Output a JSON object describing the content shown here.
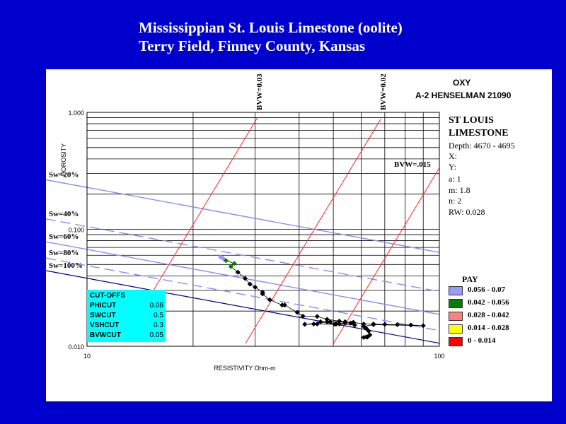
{
  "title_line1": "Mississippian St. Louis Limestone (oolite)",
  "title_line2": "Terry Field, Finney County, Kansas",
  "well": {
    "operator": "OXY",
    "name": "A-2 HENSELMAN 21090"
  },
  "formation": {
    "line1": "ST LOUIS",
    "line2": "LIMESTONE"
  },
  "info": [
    "Depth: 4670 - 4695",
    "X:",
    "Y:",
    "a: 1",
    "m: 1.8",
    "n: 2",
    "RW: 0.028"
  ],
  "cutoffs": {
    "title": "CUT-OFFS",
    "rows": [
      {
        "name": "PHICUT",
        "value": "0.08"
      },
      {
        "name": "SWCUT",
        "value": "0.5"
      },
      {
        "name": "VSHCUT",
        "value": "0.3"
      },
      {
        "name": "BVWCUT",
        "value": "0.05"
      }
    ]
  },
  "pay_legend": {
    "title": "PAY",
    "items": [
      {
        "label": "0.056 - 0.07",
        "color": "#9999ff"
      },
      {
        "label": "0.042 - 0.056",
        "color": "#008000"
      },
      {
        "label": "0.028 - 0.042",
        "color": "#ff8080"
      },
      {
        "label": "0.014 - 0.028",
        "color": "#ffff00"
      },
      {
        "label": "0 - 0.014",
        "color": "#ff0000"
      }
    ]
  },
  "chart_data": {
    "type": "scatter",
    "xlabel": "RESISTIVITY Ohm-m",
    "ylabel": "POROSITY",
    "x_scale": "log",
    "y_scale": "log",
    "xlim": [
      10,
      100
    ],
    "ylim": [
      0.01,
      1.0
    ],
    "x_tick_labels": [
      "10",
      "100"
    ],
    "y_tick_labels": [
      "0.010",
      "0.100",
      "1.000"
    ],
    "grid": true,
    "sw_lines": [
      {
        "label": "Sw=20%",
        "sw": 0.2
      },
      {
        "label": "Sw=40%",
        "sw": 0.4
      },
      {
        "label": "Sw=60%",
        "sw": 0.6
      },
      {
        "label": "Sw=80%",
        "sw": 0.8
      },
      {
        "label": "Sw=100%",
        "sw": 1.0
      }
    ],
    "bvw_lines": [
      {
        "label": "BVW=0.03",
        "bvw": 0.03
      },
      {
        "label": "BVW=0.02",
        "bvw": 0.02
      },
      {
        "label": "BVW=.015",
        "bvw": 0.015
      }
    ],
    "points": [
      {
        "x": 23.9,
        "y": 0.058,
        "color": "#9999ff"
      },
      {
        "x": 24.2,
        "y": 0.057,
        "color": "#9999ff"
      },
      {
        "x": 24.4,
        "y": 0.056,
        "color": "#9999ff"
      },
      {
        "x": 24.8,
        "y": 0.054,
        "color": "#008000"
      },
      {
        "x": 26.2,
        "y": 0.051,
        "color": "#008000"
      },
      {
        "x": 25.6,
        "y": 0.048,
        "color": "#008000"
      },
      {
        "x": 26.8,
        "y": 0.043,
        "color": "#000000"
      },
      {
        "x": 28.1,
        "y": 0.038,
        "color": "#000000"
      },
      {
        "x": 29.0,
        "y": 0.034,
        "color": "#000000"
      },
      {
        "x": 30.0,
        "y": 0.032,
        "color": "#000000"
      },
      {
        "x": 31.5,
        "y": 0.029,
        "color": "#000000"
      },
      {
        "x": 31.5,
        "y": 0.028,
        "color": "#000000"
      },
      {
        "x": 33.0,
        "y": 0.025,
        "color": "#000000"
      },
      {
        "x": 35.8,
        "y": 0.0225,
        "color": "#000000"
      },
      {
        "x": 36.4,
        "y": 0.0225,
        "color": "#000000"
      },
      {
        "x": 39.5,
        "y": 0.0195,
        "color": "#000000"
      },
      {
        "x": 41.0,
        "y": 0.0181,
        "color": "#000000"
      },
      {
        "x": 45.0,
        "y": 0.018,
        "color": "#000000"
      },
      {
        "x": 48.0,
        "y": 0.017,
        "color": "#000000"
      },
      {
        "x": 52.0,
        "y": 0.0164,
        "color": "#000000"
      },
      {
        "x": 54.0,
        "y": 0.0162,
        "color": "#000000"
      },
      {
        "x": 48.0,
        "y": 0.0162,
        "color": "#000000"
      },
      {
        "x": 46.0,
        "y": 0.0162,
        "color": "#000000"
      },
      {
        "x": 44.0,
        "y": 0.0155,
        "color": "#000000"
      },
      {
        "x": 51.0,
        "y": 0.0155,
        "color": "#000000"
      },
      {
        "x": 54.0,
        "y": 0.0158,
        "color": "#000000"
      },
      {
        "x": 56.0,
        "y": 0.0158,
        "color": "#000000"
      },
      {
        "x": 57.0,
        "y": 0.016,
        "color": "#000000"
      },
      {
        "x": 57.5,
        "y": 0.0152,
        "color": "#000000"
      },
      {
        "x": 52.0,
        "y": 0.0155,
        "color": "#000000"
      },
      {
        "x": 50.5,
        "y": 0.0154,
        "color": "#000000"
      },
      {
        "x": 45.0,
        "y": 0.0155,
        "color": "#000000"
      },
      {
        "x": 41.5,
        "y": 0.0154,
        "color": "#000000"
      },
      {
        "x": 49.0,
        "y": 0.0162,
        "color": "#000000"
      },
      {
        "x": 57.0,
        "y": 0.016,
        "color": "#000000"
      },
      {
        "x": 61.0,
        "y": 0.0155,
        "color": "#000000"
      },
      {
        "x": 65.0,
        "y": 0.0155,
        "color": "#000000"
      },
      {
        "x": 70.0,
        "y": 0.0154,
        "color": "#000000"
      },
      {
        "x": 76.0,
        "y": 0.0153,
        "color": "#000000"
      },
      {
        "x": 83.0,
        "y": 0.0152,
        "color": "#000000"
      },
      {
        "x": 90.0,
        "y": 0.015,
        "color": "#000000"
      },
      {
        "x": 65.0,
        "y": 0.0153,
        "color": "#000000"
      },
      {
        "x": 61.0,
        "y": 0.0148,
        "color": "#000000"
      },
      {
        "x": 62.0,
        "y": 0.0142,
        "color": "#000000"
      },
      {
        "x": 63.0,
        "y": 0.0135,
        "color": "#000000"
      },
      {
        "x": 63.5,
        "y": 0.0125,
        "color": "#000000"
      },
      {
        "x": 62.5,
        "y": 0.012,
        "color": "#000000"
      },
      {
        "x": 61.0,
        "y": 0.0119,
        "color": "#000000"
      },
      {
        "x": 62.0,
        "y": 0.012,
        "color": "#000000"
      }
    ]
  }
}
